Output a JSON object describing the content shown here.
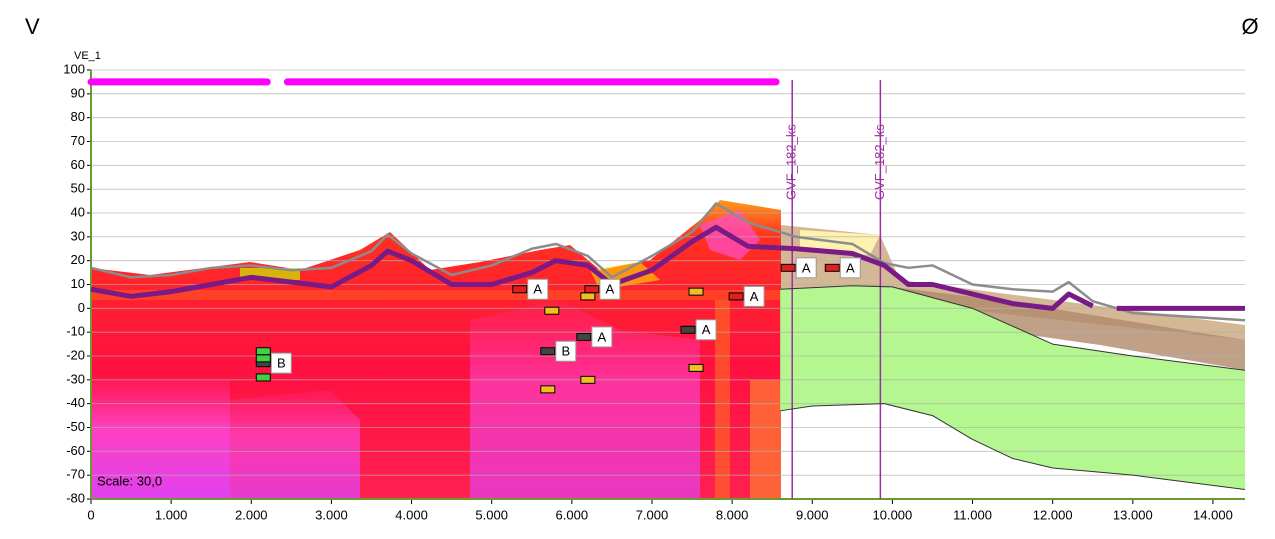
{
  "chart_data": {
    "type": "line",
    "corner_left": "V",
    "corner_right": "Ø",
    "y_label": "VE_1",
    "scale_label": "Scale: 30,0",
    "xlim": [
      0,
      14400
    ],
    "ylim": [
      -80,
      100
    ],
    "xticks": [
      0,
      {
        "value": 1000,
        "label": "1.000"
      },
      {
        "value": 2000,
        "label": "2.000"
      },
      {
        "value": 3000,
        "label": "3.000"
      },
      {
        "value": 4000,
        "label": "4.000"
      },
      {
        "value": 5000,
        "label": "5.000"
      },
      {
        "value": 6000,
        "label": "6.000"
      },
      {
        "value": 7000,
        "label": "7.000"
      },
      {
        "value": 8000,
        "label": "8.000"
      },
      {
        "value": 9000,
        "label": "9.000"
      },
      {
        "value": 10000,
        "label": "10.000"
      },
      {
        "value": 11000,
        "label": "11.000"
      },
      {
        "value": 12000,
        "label": "12.000"
      },
      {
        "value": 13000,
        "label": "13.000"
      },
      {
        "value": 14000,
        "label": "14.000"
      }
    ],
    "yticks": [
      -80,
      -70,
      -60,
      -50,
      -40,
      -30,
      -20,
      -10,
      0,
      10,
      20,
      30,
      40,
      50,
      60,
      70,
      80,
      90,
      100
    ],
    "grid": true,
    "series": [
      {
        "color": "#8c8c8c",
        "width": 2.5,
        "x": [
          0,
          500,
          1000,
          1500,
          2000,
          2500,
          3000,
          3500,
          3700,
          4000,
          4500,
          5000,
          5500,
          5800,
          6200,
          6500,
          7000,
          7500,
          7800,
          8200,
          8800,
          9500,
          9900,
          10200,
          10500,
          11000,
          11500,
          12000,
          12200,
          12500,
          13000,
          14400
        ],
        "values": [
          17,
          13,
          14,
          17,
          18,
          16,
          17,
          24,
          31,
          23,
          14,
          18,
          25,
          27,
          22,
          13,
          22,
          32,
          44,
          36,
          30,
          27,
          19,
          17,
          18,
          10,
          8,
          7,
          11,
          3,
          -2,
          -5
        ]
      },
      {
        "color": "#333333",
        "width": 1,
        "x": [
          8600,
          9500,
          10000,
          11000,
          12000,
          13000,
          14400
        ],
        "values": [
          8,
          9.5,
          9,
          0,
          -15,
          -20,
          -26
        ]
      },
      {
        "color": "#333333",
        "width": 1,
        "x": [
          8600,
          9000,
          9900,
          10500,
          11000,
          11500,
          12000,
          13000,
          14400
        ],
        "values": [
          -43,
          -41,
          -40,
          -45,
          -55,
          -63,
          -67,
          -70,
          -76
        ]
      },
      {
        "color": "#7a1a86",
        "width": 5,
        "x": [
          0,
          500,
          1000,
          1500,
          2000,
          2500,
          3000,
          3500,
          3700,
          4000,
          4500,
          5000,
          5500,
          5800,
          6200,
          6500,
          7000,
          7500,
          7800,
          8200,
          8800,
          9500,
          9900,
          10200,
          10500,
          11000,
          11500,
          12000,
          12200,
          12500,
          12700,
          12800,
          14400
        ],
        "values": [
          8,
          5,
          7,
          10,
          13,
          11,
          9,
          18,
          24,
          20,
          10,
          10,
          15,
          20,
          18,
          10,
          16,
          28,
          34,
          26,
          25,
          23,
          18,
          10,
          10,
          6,
          2,
          0,
          6,
          1,
          null,
          0,
          0
        ]
      }
    ],
    "top_bars": {
      "color": "#ff00ff",
      "y": 95,
      "ranges": [
        [
          0,
          2200
        ],
        [
          2450,
          8550
        ]
      ]
    },
    "markers": [
      {
        "x": 8750,
        "label": "GVF_182_ks"
      },
      {
        "x": 9850,
        "label": "GVF_182_ks"
      }
    ],
    "annotations": [
      {
        "x": 5350,
        "y": 8,
        "color": "#e02020",
        "label": "A"
      },
      {
        "x": 6250,
        "y": 8,
        "color": "#e02020",
        "label": "A"
      },
      {
        "x": 6200,
        "y": 5,
        "color": "#f0c020"
      },
      {
        "x": 8050,
        "y": 5,
        "color": "#e02020",
        "label": "A"
      },
      {
        "x": 9250,
        "y": 17,
        "color": "#e02020",
        "label": "A"
      },
      {
        "x": 8700,
        "y": 17,
        "color": "#e02020",
        "label": "A"
      },
      {
        "x": 5750,
        "y": -1,
        "color": "#f0c020"
      },
      {
        "x": 7550,
        "y": 7,
        "color": "#f0c020"
      },
      {
        "x": 7550,
        "y": -25,
        "color": "#f0c020"
      },
      {
        "x": 6200,
        "y": -30,
        "color": "#f0c020"
      },
      {
        "x": 5700,
        "y": -34,
        "color": "#f0c020"
      },
      {
        "x": 6150,
        "y": -12,
        "color": "#444444",
        "label": "A"
      },
      {
        "x": 7450,
        "y": -9,
        "color": "#444444",
        "label": "A"
      },
      {
        "x": 5700,
        "y": -18,
        "color": "#444444",
        "label": "B"
      },
      {
        "x": 2150,
        "y": -23,
        "color": "#444444",
        "label": "B"
      },
      {
        "x": 2150,
        "y": -18,
        "color": "#40d040"
      },
      {
        "x": 2150,
        "y": -21,
        "color": "#40d040"
      },
      {
        "x": 2150,
        "y": -29,
        "color": "#40d040"
      }
    ]
  }
}
